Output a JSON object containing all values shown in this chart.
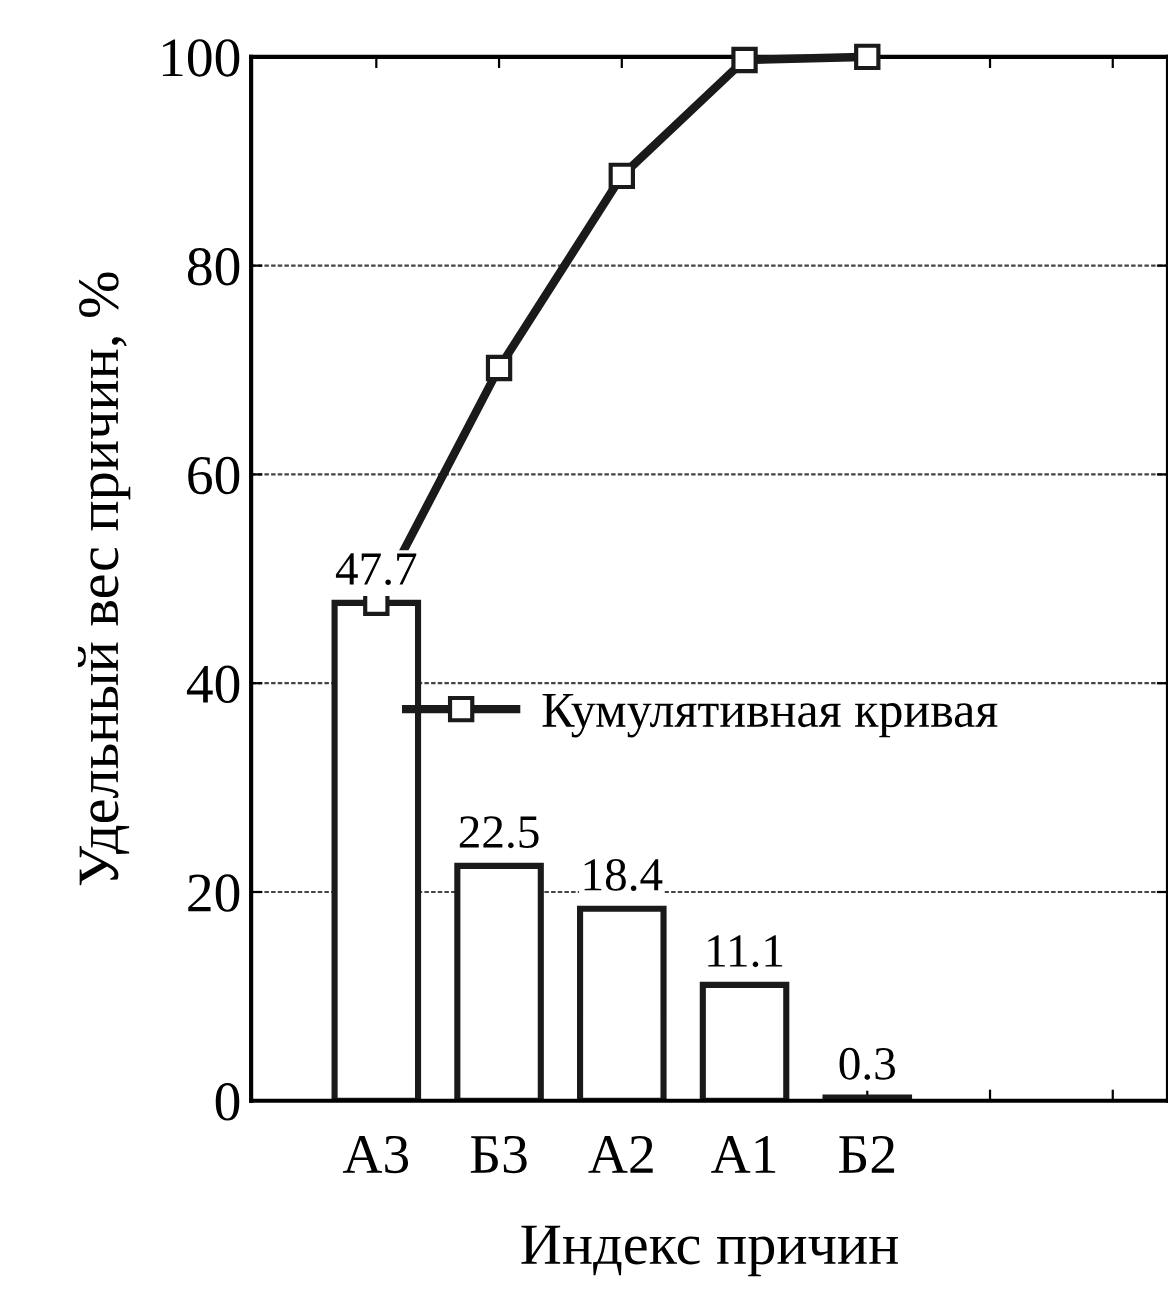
{
  "chart_data": {
    "type": "bar",
    "xlabel": "Индекс причин",
    "ylabel": "Удельный вес причин, %",
    "categories": [
      "А3",
      "Б3",
      "А2",
      "А1",
      "Б2",
      null,
      null
    ],
    "series": [
      {
        "color": "#ffffff",
        "values": [
          47.7,
          22.5,
          18.4,
          11.1,
          0.3,
          null,
          null
        ],
        "data_labels": true
      },
      {
        "type": "line",
        "name": "Кумулятивная кривая",
        "color": "#1a1a1a",
        "values": [
          47.7,
          70.2,
          88.6,
          99.7,
          100,
          null,
          null
        ],
        "marker": "square",
        "line_style": "solid"
      }
    ],
    "ylim": [
      0,
      100
    ],
    "yticks": [
      0,
      20,
      40,
      60,
      80,
      100
    ],
    "grid": "y",
    "legend": "center"
  }
}
